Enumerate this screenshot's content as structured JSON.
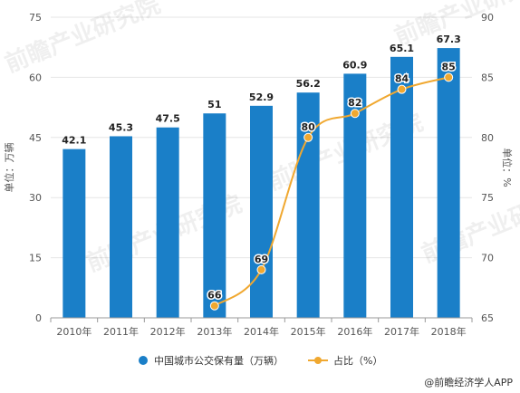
{
  "chart_data": {
    "type": "bar",
    "categories": [
      "2010年",
      "2011年",
      "2012年",
      "2013年",
      "2014年",
      "2015年",
      "2016年",
      "2017年",
      "2018年"
    ],
    "series": [
      {
        "name": "中国城市公交保有量（万辆）",
        "type": "bar",
        "axis": "left",
        "values": [
          42.1,
          45.3,
          47.5,
          51,
          52.9,
          56.2,
          60.9,
          65.1,
          67.3
        ],
        "labels": [
          "42.1",
          "45.3",
          "47.5",
          "51",
          "52.9",
          "56.2",
          "60.9",
          "65.1",
          "67.3"
        ],
        "color": "#1a7fc8"
      },
      {
        "name": "占比（%）",
        "type": "line",
        "axis": "right",
        "values": [
          null,
          null,
          null,
          66,
          69,
          80,
          82,
          84,
          85
        ],
        "labels": [
          "",
          "",
          "",
          "66",
          "69",
          "80",
          "82",
          "84",
          "85"
        ],
        "color": "#f0a830"
      }
    ],
    "ylabel": "单位：万辆",
    "y2label": "单位：%",
    "ylim": [
      0,
      75
    ],
    "yticks": [
      "0",
      "15",
      "30",
      "45",
      "60",
      "75"
    ],
    "y2lim": [
      65,
      90
    ],
    "y2ticks": [
      "65",
      "70",
      "75",
      "80",
      "85",
      "90"
    ],
    "grid": true,
    "legend_position": "bottom"
  },
  "credit": "@前瞻经济学人APP",
  "watermark": "前瞻产业研究院"
}
